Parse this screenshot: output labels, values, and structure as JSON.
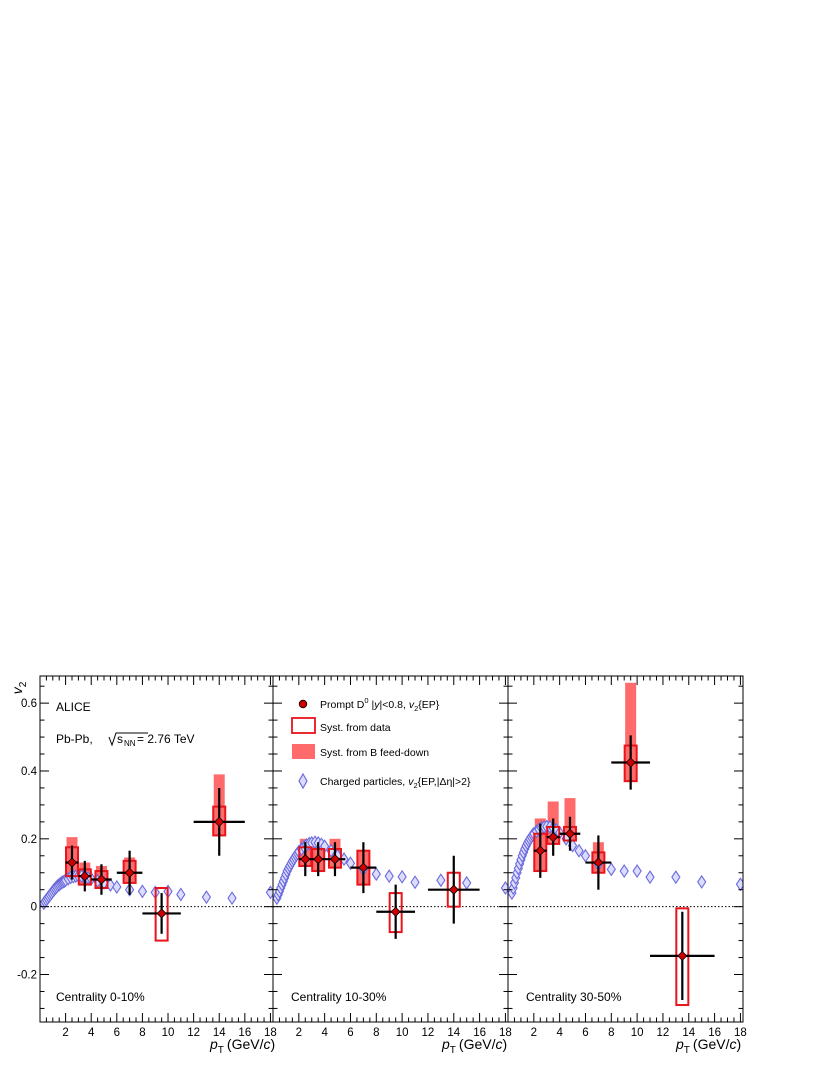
{
  "figure": {
    "experiment": "ALICE",
    "system": "Pb-Pb,",
    "energy_prefix": "s",
    "energy_subscript": "NN",
    "energy_value": "= 2.76 TeV",
    "y_axis_label": "v",
    "y_axis_sub": "2",
    "x_axis_label_p": "p",
    "x_axis_label_T": "T",
    "x_axis_label_unit": "(GeV/",
    "x_axis_label_c": "c",
    "x_axis_label_close": ")"
  },
  "legend": {
    "d0_label_a": "Prompt D",
    "d0_sup": "0",
    "d0_label_b": "|",
    "d0_y": "y",
    "d0_label_c": "|<0.8,",
    "d0_v": "v",
    "d0_v_sub": "2",
    "d0_label_d": "{EP}",
    "syst_data": "Syst. from data",
    "syst_bfeed": "Syst. from B feed-down",
    "charged_a": "Charged particles,",
    "charged_v": "v",
    "charged_v_sub": "2",
    "charged_b": "{EP,|Δη|>2}"
  },
  "colors": {
    "d0_marker": "#cc0000",
    "syst_data_box": "#e8141c",
    "syst_bfeed_fill": "#ff6a6a",
    "charged_marker": "#6b6bdc",
    "charged_fill": "#dcdcff"
  },
  "chart_data": [
    {
      "type": "scatter",
      "panel": "Centrality 0-10%",
      "xlim": [
        0,
        18.2
      ],
      "ylim": [
        -0.34,
        0.68
      ],
      "x_ticks": [
        2,
        4,
        6,
        8,
        10,
        12,
        14,
        16,
        18
      ],
      "y_ticks": [
        -0.2,
        0,
        0.2,
        0.4,
        0.6
      ],
      "d0": [
        {
          "x": 2.5,
          "xerr": 0.5,
          "y": 0.13,
          "yerr": 0.05,
          "syst_lo": 0.09,
          "syst_hi": 0.175,
          "bfd_lo": 0.09,
          "bfd_hi": 0.205
        },
        {
          "x": 3.5,
          "xerr": 0.5,
          "y": 0.09,
          "yerr": 0.045,
          "syst_lo": 0.065,
          "syst_hi": 0.11,
          "bfd_lo": 0.065,
          "bfd_hi": 0.13
        },
        {
          "x": 4.8,
          "xerr": 0.8,
          "y": 0.08,
          "yerr": 0.045,
          "syst_lo": 0.055,
          "syst_hi": 0.105,
          "bfd_lo": 0.055,
          "bfd_hi": 0.12
        },
        {
          "x": 7.0,
          "xerr": 1.0,
          "y": 0.1,
          "yerr": 0.065,
          "syst_lo": 0.07,
          "syst_hi": 0.135,
          "bfd_lo": 0.07,
          "bfd_hi": 0.145
        },
        {
          "x": 9.5,
          "xerr": 1.5,
          "y": -0.02,
          "yerr": 0.06,
          "syst_lo": -0.1,
          "syst_hi": 0.055,
          "bfd_lo": -0.02,
          "bfd_hi": -0.02
        },
        {
          "x": 14.0,
          "xerr": 2.0,
          "y": 0.25,
          "yerr": 0.1,
          "syst_lo": 0.21,
          "syst_hi": 0.295,
          "bfd_lo": 0.21,
          "bfd_hi": 0.39
        }
      ],
      "charged": {
        "x": [
          0.3,
          0.4,
          0.5,
          0.6,
          0.7,
          0.8,
          0.9,
          1.0,
          1.1,
          1.2,
          1.3,
          1.4,
          1.5,
          1.6,
          1.7,
          1.8,
          1.9,
          2.0,
          2.2,
          2.4,
          2.6,
          2.8,
          3.0,
          3.25,
          3.5,
          3.75,
          4.0,
          4.5,
          5.0,
          5.5,
          6.0,
          7.0,
          8.0,
          9.0,
          10.0,
          11.0,
          13.0,
          15.0,
          18.0
        ],
        "y": [
          0.01,
          0.015,
          0.02,
          0.025,
          0.03,
          0.035,
          0.04,
          0.045,
          0.05,
          0.054,
          0.058,
          0.062,
          0.065,
          0.068,
          0.071,
          0.073,
          0.075,
          0.078,
          0.082,
          0.086,
          0.088,
          0.09,
          0.09,
          0.09,
          0.088,
          0.085,
          0.082,
          0.076,
          0.07,
          0.064,
          0.058,
          0.05,
          0.045,
          0.042,
          0.045,
          0.036,
          0.028,
          0.025,
          0.042
        ]
      }
    },
    {
      "type": "scatter",
      "panel": "Centrality 10-30%",
      "xlim": [
        0,
        18.2
      ],
      "ylim": [
        -0.34,
        0.68
      ],
      "x_ticks": [
        2,
        4,
        6,
        8,
        10,
        12,
        14,
        16,
        18
      ],
      "d0": [
        {
          "x": 2.5,
          "xerr": 0.5,
          "y": 0.14,
          "yerr": 0.05,
          "syst_lo": 0.12,
          "syst_hi": 0.175,
          "bfd_lo": 0.12,
          "bfd_hi": 0.2
        },
        {
          "x": 3.5,
          "xerr": 0.5,
          "y": 0.14,
          "yerr": 0.05,
          "syst_lo": 0.105,
          "syst_hi": 0.17,
          "bfd_lo": 0.105,
          "bfd_hi": 0.19
        },
        {
          "x": 4.8,
          "xerr": 0.8,
          "y": 0.14,
          "yerr": 0.05,
          "syst_lo": 0.115,
          "syst_hi": 0.17,
          "bfd_lo": 0.115,
          "bfd_hi": 0.2
        },
        {
          "x": 7.0,
          "xerr": 1.0,
          "y": 0.115,
          "yerr": 0.075,
          "syst_lo": 0.065,
          "syst_hi": 0.165,
          "bfd_lo": 0.065,
          "bfd_hi": 0.165
        },
        {
          "x": 9.5,
          "xerr": 1.5,
          "y": -0.015,
          "yerr": 0.08,
          "syst_lo": -0.075,
          "syst_hi": 0.04,
          "bfd_lo": -0.015,
          "bfd_hi": -0.015
        },
        {
          "x": 14.0,
          "xerr": 2.0,
          "y": 0.05,
          "yerr": 0.1,
          "syst_lo": 0.0,
          "syst_hi": 0.1,
          "bfd_lo": 0.05,
          "bfd_hi": 0.05
        }
      ],
      "charged": {
        "x": [
          0.3,
          0.4,
          0.5,
          0.6,
          0.7,
          0.8,
          0.9,
          1.0,
          1.1,
          1.2,
          1.3,
          1.4,
          1.5,
          1.6,
          1.7,
          1.8,
          1.9,
          2.0,
          2.2,
          2.4,
          2.6,
          2.8,
          3.0,
          3.25,
          3.5,
          3.75,
          4.0,
          4.5,
          5.0,
          5.5,
          6.0,
          7.0,
          8.0,
          9.0,
          10.0,
          11.0,
          13.0,
          15.0,
          18.0
        ],
        "y": [
          0.025,
          0.035,
          0.045,
          0.055,
          0.065,
          0.075,
          0.085,
          0.095,
          0.105,
          0.113,
          0.12,
          0.127,
          0.134,
          0.14,
          0.146,
          0.152,
          0.157,
          0.162,
          0.17,
          0.177,
          0.182,
          0.186,
          0.188,
          0.19,
          0.188,
          0.184,
          0.178,
          0.165,
          0.15,
          0.14,
          0.128,
          0.11,
          0.096,
          0.09,
          0.088,
          0.072,
          0.078,
          0.07,
          0.055
        ]
      }
    },
    {
      "type": "scatter",
      "panel": "Centrality 30-50%",
      "xlim": [
        0,
        18.2
      ],
      "ylim": [
        -0.34,
        0.68
      ],
      "x_ticks": [
        2,
        4,
        6,
        8,
        10,
        12,
        14,
        16,
        18
      ],
      "d0": [
        {
          "x": 2.5,
          "xerr": 0.5,
          "y": 0.165,
          "yerr": 0.08,
          "syst_lo": 0.105,
          "syst_hi": 0.215,
          "bfd_lo": 0.105,
          "bfd_hi": 0.26
        },
        {
          "x": 3.5,
          "xerr": 0.5,
          "y": 0.205,
          "yerr": 0.055,
          "syst_lo": 0.185,
          "syst_hi": 0.235,
          "bfd_lo": 0.185,
          "bfd_hi": 0.31
        },
        {
          "x": 4.8,
          "xerr": 0.8,
          "y": 0.215,
          "yerr": 0.05,
          "syst_lo": 0.195,
          "syst_hi": 0.235,
          "bfd_lo": 0.195,
          "bfd_hi": 0.32
        },
        {
          "x": 7.0,
          "xerr": 1.0,
          "y": 0.13,
          "yerr": 0.08,
          "syst_lo": 0.1,
          "syst_hi": 0.16,
          "bfd_lo": 0.1,
          "bfd_hi": 0.19
        },
        {
          "x": 9.5,
          "xerr": 1.5,
          "y": 0.425,
          "yerr": 0.08,
          "syst_lo": 0.37,
          "syst_hi": 0.475,
          "bfd_lo": 0.37,
          "bfd_hi": 0.66
        },
        {
          "x": 13.5,
          "xerr": 2.5,
          "y": -0.145,
          "yerr": 0.13,
          "syst_lo": -0.29,
          "syst_hi": -0.005,
          "bfd_lo": -0.145,
          "bfd_hi": -0.145
        }
      ],
      "charged": {
        "x": [
          0.3,
          0.4,
          0.5,
          0.6,
          0.7,
          0.8,
          0.9,
          1.0,
          1.1,
          1.2,
          1.3,
          1.4,
          1.5,
          1.6,
          1.7,
          1.8,
          1.9,
          2.0,
          2.2,
          2.4,
          2.6,
          2.8,
          3.0,
          3.25,
          3.5,
          3.75,
          4.0,
          4.5,
          5.0,
          5.5,
          6.0,
          7.0,
          8.0,
          9.0,
          10.0,
          11.0,
          13.0,
          15.0,
          18.0
        ],
        "y": [
          0.04,
          0.055,
          0.07,
          0.085,
          0.1,
          0.113,
          0.126,
          0.138,
          0.15,
          0.16,
          0.17,
          0.179,
          0.187,
          0.194,
          0.2,
          0.206,
          0.211,
          0.215,
          0.222,
          0.228,
          0.232,
          0.235,
          0.236,
          0.235,
          0.232,
          0.226,
          0.218,
          0.2,
          0.18,
          0.165,
          0.15,
          0.125,
          0.11,
          0.105,
          0.105,
          0.087,
          0.087,
          0.073,
          0.066
        ]
      }
    }
  ]
}
